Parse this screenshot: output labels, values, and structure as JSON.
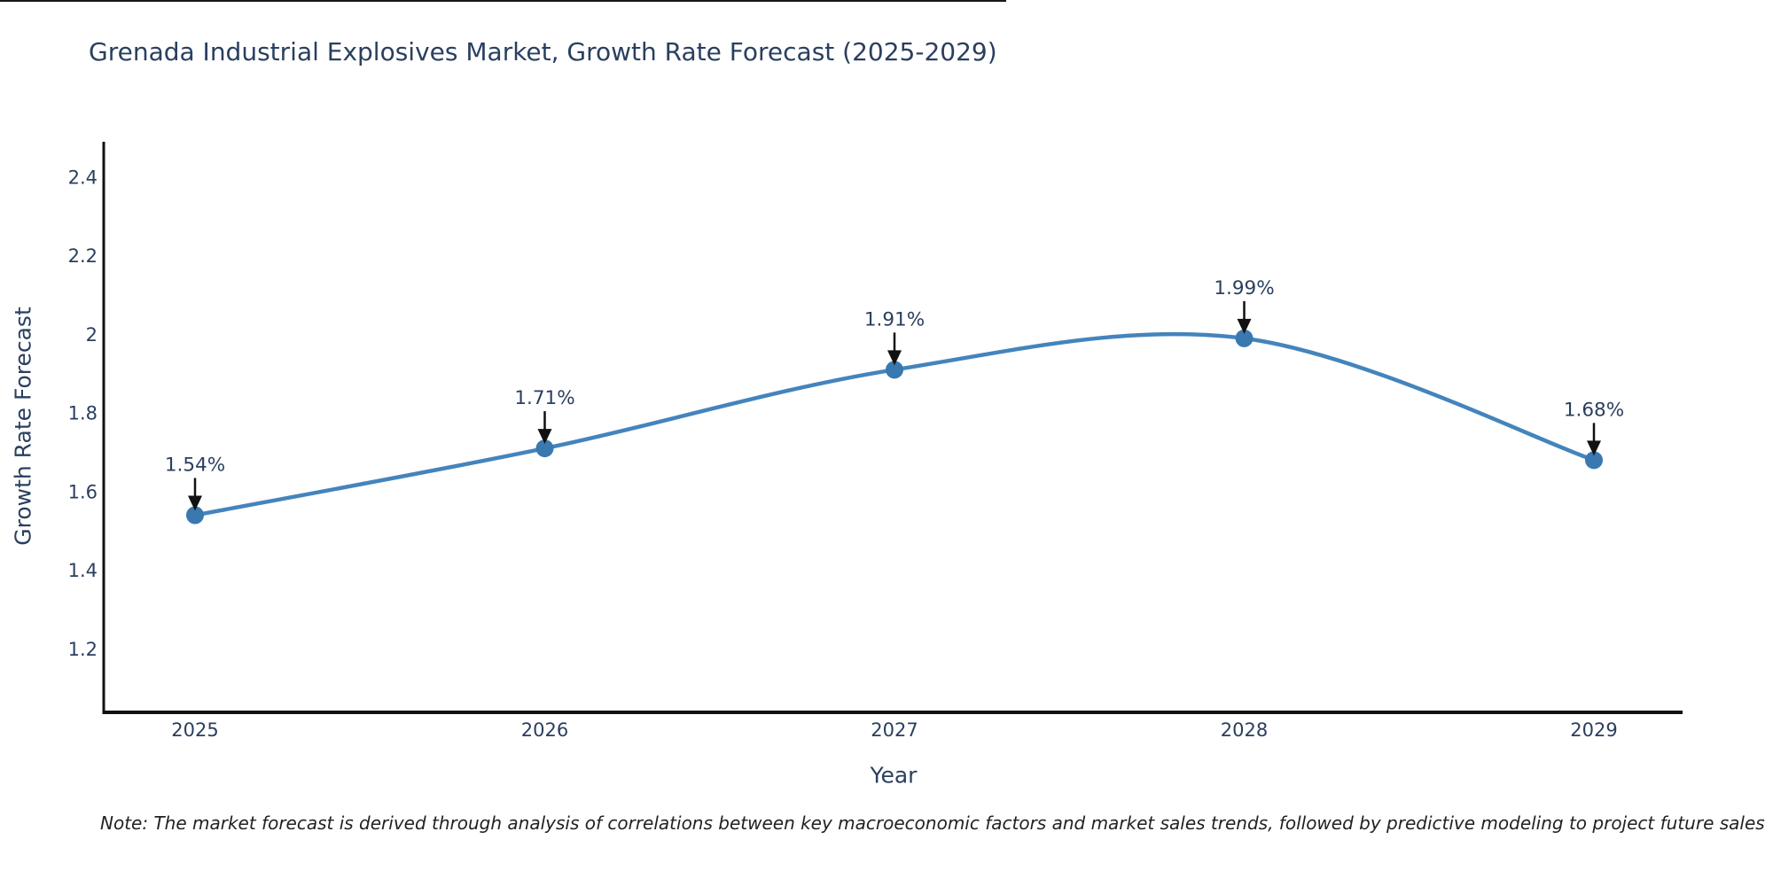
{
  "title": "Grenada Industrial Explosives Market, Growth Rate Forecast (2025-2029)",
  "note": "Note: The market forecast is derived through analysis of correlations between key macroeconomic factors and market sales trends, followed by predictive modeling to project future sales",
  "chart_data": {
    "type": "line",
    "title": "Grenada Industrial Explosives Market, Growth Rate Forecast (2025-2029)",
    "xlabel": "Year",
    "ylabel": "Growth Rate Forecast",
    "x": [
      2025,
      2026,
      2027,
      2028,
      2029
    ],
    "series": [
      {
        "name": "Growth Rate Forecast",
        "values": [
          1.54,
          1.71,
          1.91,
          1.99,
          1.68
        ],
        "point_labels": [
          "1.54%",
          "1.71%",
          "1.91%",
          "1.99%",
          "1.68%"
        ]
      }
    ],
    "line_shape": "spline",
    "markers": true,
    "annotation_arrows": true,
    "ylim": [
      1.043,
      2.49
    ],
    "yticks": [
      1.2,
      1.4,
      1.6,
      1.8,
      2.0,
      2.2,
      2.4
    ],
    "ytick_labels": [
      "1.2",
      "1.4",
      "1.6",
      "1.8",
      "2",
      "2.2",
      "2.4"
    ],
    "xtick_labels": [
      "2025",
      "2026",
      "2027",
      "2028",
      "2029"
    ],
    "grid": false,
    "legend_position": "none",
    "colors": {
      "line": "#4484bc",
      "marker": "#3a78b0",
      "text": "#2a3f5f",
      "axis": "#111111",
      "arrow": "#111111"
    }
  }
}
